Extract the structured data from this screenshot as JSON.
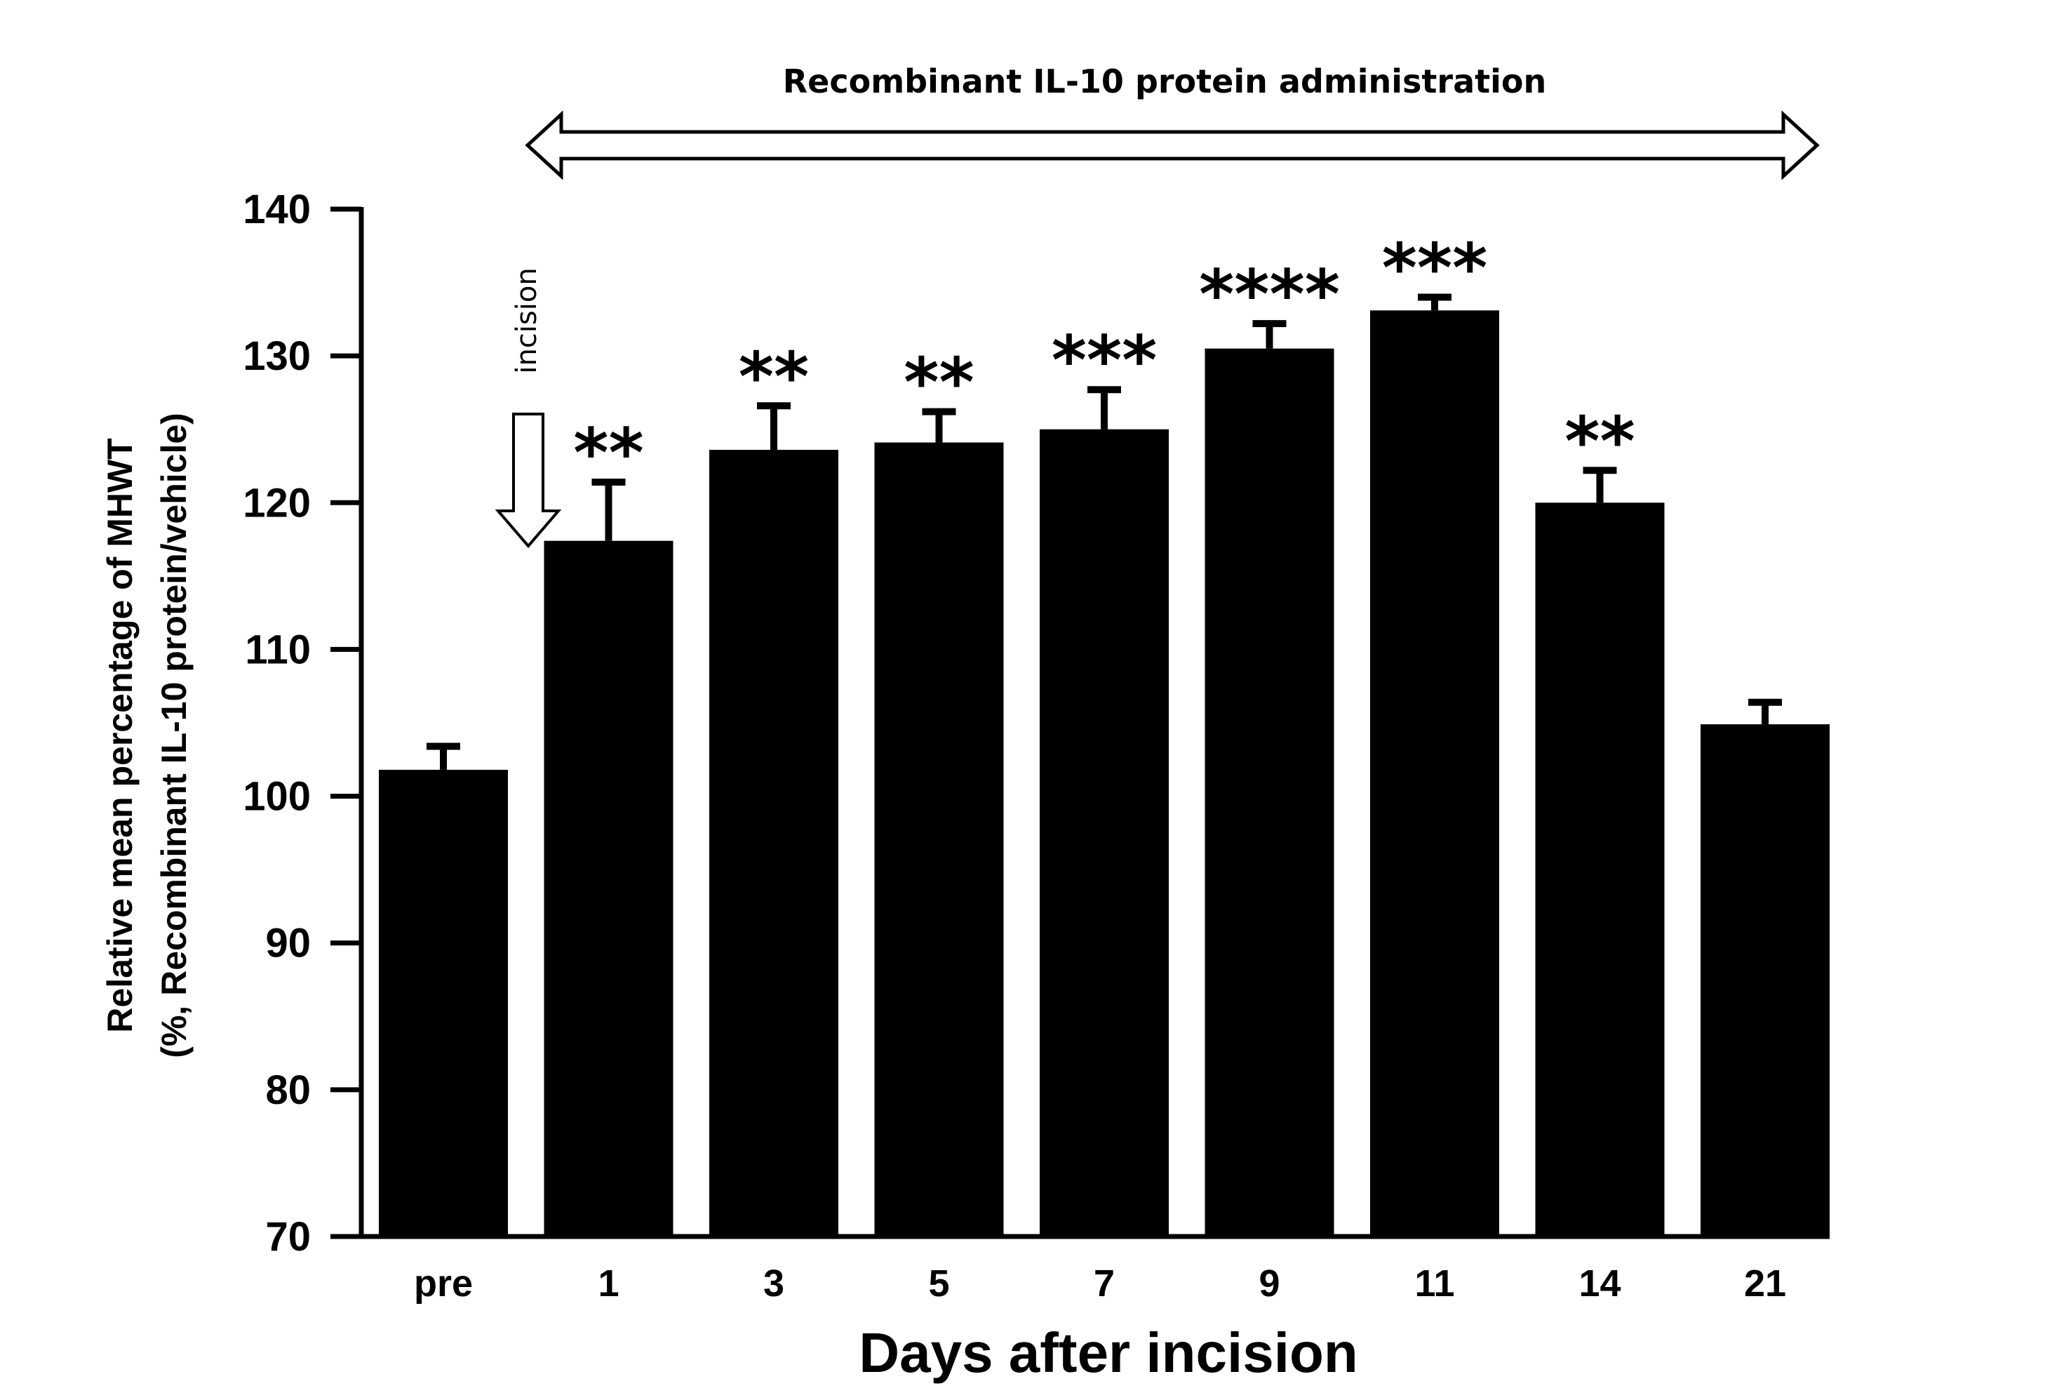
{
  "chart_data": {
    "type": "bar",
    "title": "",
    "xlabel": "Days after incision",
    "ylabel_line1": "Relative mean percentage of MHWT",
    "ylabel_line2": "(%, Recombinant IL-10 protein/vehicle)",
    "ylim": [
      70,
      140
    ],
    "yticks": [
      70,
      80,
      90,
      100,
      110,
      120,
      130,
      140
    ],
    "grid": false,
    "categories": [
      "pre",
      "1",
      "3",
      "5",
      "7",
      "9",
      "11",
      "14",
      "21"
    ],
    "values": [
      101.8,
      117.4,
      123.6,
      124.1,
      125.0,
      130.5,
      133.1,
      120.0,
      104.9
    ],
    "errors": [
      1.6,
      4.0,
      3.0,
      2.1,
      2.7,
      1.7,
      0.9,
      2.2,
      1.5
    ],
    "significance": [
      "",
      "**",
      "**",
      "**",
      "***",
      "****",
      "***",
      "**",
      ""
    ],
    "bar_color": "#000000",
    "annotations": {
      "treatment_period": "Recombinant IL-10 protein administration",
      "incision_marker": "incision"
    }
  }
}
